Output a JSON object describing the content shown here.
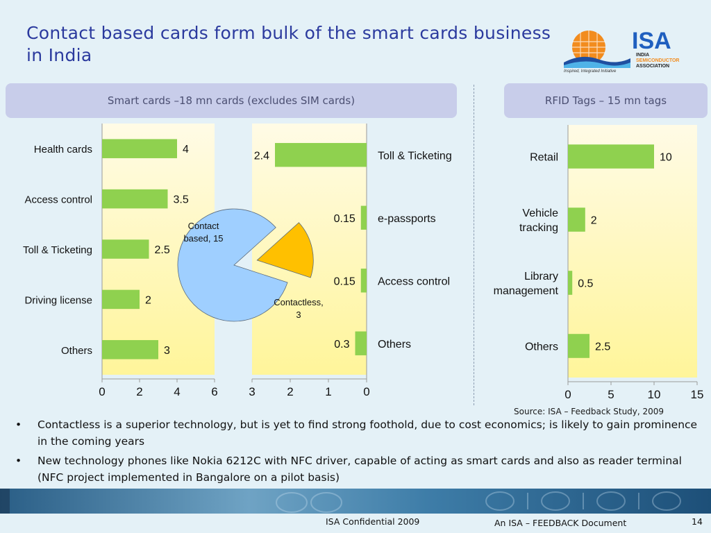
{
  "slide": {
    "title": "Contact based cards form bulk of the smart cards business in India",
    "logo": {
      "name": "ISA",
      "line1": "INDIA",
      "line2": "SEMICONDUCTOR",
      "line3": "ASSOCIATION",
      "tagline": "Inspired, Integrated Initiative"
    },
    "banner_left": "Smart cards –18 mn cards (excludes SIM cards)",
    "banner_right": "RFID Tags – 15 mn tags",
    "source": "Source: ISA – Feedback Study, 2009",
    "bullets": [
      "Contactless is a superior technology, but is yet to find strong foothold, due to cost economics; is likely to gain prominence in the coming years",
      "New technology phones like Nokia 6212C with NFC driver, capable of acting as smart cards and also as reader terminal (NFC project implemented in Bangalore on a pilot basis)"
    ],
    "footer_left": "ISA Confidential 2009",
    "footer_center": "An ISA – FEEDBACK Document",
    "page_number": "14",
    "colors": {
      "bar": "#8fd14f",
      "plot_bg_top": "#fffbe0",
      "plot_bg_bottom": "#fff6a0",
      "pie_contact": "#9fcfff",
      "pie_contactless": "#ffc000",
      "title": "#2b3a9e"
    }
  },
  "chart_data": [
    {
      "type": "bar",
      "orientation": "horizontal",
      "categories": [
        "Health cards",
        "Access control",
        "Toll & Ticketing",
        "Driving license",
        "Others"
      ],
      "values": [
        4,
        3.5,
        2.5,
        2,
        3
      ],
      "value_labels": [
        "4",
        "3.5",
        "2.5",
        "2",
        "3"
      ],
      "xlim": [
        0,
        6
      ],
      "xticks": [
        "0",
        "2",
        "4",
        "6"
      ]
    },
    {
      "type": "bar",
      "orientation": "horizontal",
      "reversed_axis": true,
      "categories": [
        "Toll & Ticketing",
        "e-passports",
        "Access control",
        "Others"
      ],
      "values": [
        2.4,
        0.15,
        0.15,
        0.3
      ],
      "value_labels": [
        "2.4",
        "0.15",
        "0.15",
        "0.3"
      ],
      "xlim": [
        0,
        3
      ],
      "xticks": [
        "3",
        "2",
        "1",
        "0"
      ]
    },
    {
      "type": "pie",
      "slices": [
        {
          "label": "Contact based, 15",
          "label_lines": [
            "Contact",
            "based, 15"
          ],
          "value": 15
        },
        {
          "label": "Contactless, 3",
          "label_lines": [
            "Contactless,",
            "3"
          ],
          "value": 3
        }
      ]
    },
    {
      "type": "bar",
      "orientation": "horizontal",
      "categories": [
        [
          "Retail"
        ],
        [
          "Vehicle",
          "tracking"
        ],
        [
          "Library",
          "management"
        ],
        [
          "Others"
        ]
      ],
      "values": [
        10,
        2,
        0.5,
        2.5
      ],
      "value_labels": [
        "10",
        "2",
        "0.5",
        "2.5"
      ],
      "xlim": [
        0,
        15
      ],
      "xticks": [
        "0",
        "5",
        "10",
        "15"
      ]
    }
  ]
}
